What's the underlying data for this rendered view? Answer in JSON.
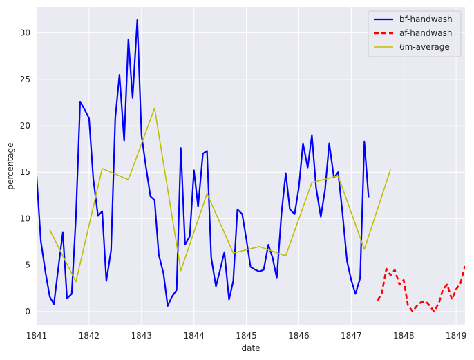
{
  "chart_data": {
    "type": "line",
    "title": "",
    "xlabel": "date",
    "ylabel": "percentage",
    "xlim": [
      1841.0,
      1849.17
    ],
    "ylim": [
      -1.5,
      32.8
    ],
    "x_ticks": [
      1841,
      1842,
      1843,
      1844,
      1845,
      1846,
      1847,
      1848,
      1849
    ],
    "x_tick_labels": [
      "1841",
      "1842",
      "1843",
      "1844",
      "1845",
      "1846",
      "1847",
      "1848",
      "1849"
    ],
    "y_ticks": [
      0,
      5,
      10,
      15,
      20,
      25,
      30
    ],
    "y_tick_labels": [
      "0",
      "5",
      "10",
      "15",
      "20",
      "25",
      "30"
    ],
    "grid": true,
    "legend_position": "top-right",
    "series": [
      {
        "name": "bf-handwash",
        "color": "#0000ff",
        "style": "solid",
        "x": [
          1841.0,
          1841.08,
          1841.17,
          1841.25,
          1841.33,
          1841.42,
          1841.5,
          1841.58,
          1841.67,
          1841.75,
          1841.83,
          1841.92,
          1842.0,
          1842.08,
          1842.17,
          1842.25,
          1842.33,
          1842.42,
          1842.5,
          1842.58,
          1842.67,
          1842.75,
          1842.83,
          1842.92,
          1843.0,
          1843.08,
          1843.17,
          1843.25,
          1843.33,
          1843.42,
          1843.5,
          1843.58,
          1843.67,
          1843.75,
          1843.83,
          1843.92,
          1844.0,
          1844.08,
          1844.17,
          1844.25,
          1844.33,
          1844.42,
          1844.5,
          1844.58,
          1844.67,
          1844.75,
          1844.83,
          1844.92,
          1845.0,
          1845.08,
          1845.17,
          1845.25,
          1845.33,
          1845.42,
          1845.5,
          1845.58,
          1845.67,
          1845.75,
          1845.83,
          1845.92,
          1846.0,
          1846.08,
          1846.17,
          1846.25,
          1846.33,
          1846.42,
          1846.5,
          1846.58,
          1846.67,
          1846.75,
          1846.83,
          1846.92,
          1847.0,
          1847.08,
          1847.17,
          1847.25,
          1847.33
        ],
        "y": [
          14.6,
          7.6,
          4.2,
          1.6,
          0.8,
          5.0,
          8.5,
          1.4,
          1.9,
          10.2,
          22.6,
          21.7,
          20.8,
          14.3,
          10.3,
          10.8,
          3.3,
          6.6,
          20.8,
          25.5,
          18.4,
          29.3,
          23.0,
          31.4,
          19.0,
          15.8,
          12.4,
          12.0,
          6.1,
          4.1,
          0.6,
          1.6,
          2.3,
          17.6,
          7.2,
          8.1,
          15.2,
          11.3,
          17.0,
          17.3,
          5.8,
          2.7,
          4.5,
          6.4,
          1.3,
          3.3,
          11.0,
          10.5,
          7.8,
          4.8,
          4.5,
          4.3,
          4.5,
          7.2,
          5.8,
          3.6,
          10.6,
          14.9,
          11.0,
          10.5,
          13.3,
          18.1,
          15.5,
          19.0,
          13.3,
          10.2,
          13.1,
          18.1,
          14.4,
          15.0,
          10.8,
          5.4,
          3.4,
          1.9,
          3.6,
          18.3,
          12.3
        ]
      },
      {
        "name": "af-handwash",
        "color": "#ff0000",
        "style": "dashed",
        "x": [
          1847.5,
          1847.58,
          1847.67,
          1847.75,
          1847.83,
          1847.92,
          1848.0,
          1848.08,
          1848.17,
          1848.25,
          1848.33,
          1848.42,
          1848.5,
          1848.58,
          1848.67,
          1848.75,
          1848.83,
          1848.92,
          1849.0,
          1849.08,
          1849.17
        ],
        "y": [
          1.2,
          1.9,
          4.6,
          3.9,
          4.5,
          2.9,
          3.4,
          0.7,
          0.0,
          0.6,
          1.0,
          1.1,
          0.6,
          0.0,
          0.9,
          2.4,
          2.9,
          1.3,
          2.4,
          3.0,
          4.9
        ]
      },
      {
        "name": "6m-average",
        "color": "#bfbf00",
        "style": "solid",
        "x": [
          1841.25,
          1841.75,
          1842.25,
          1842.75,
          1843.25,
          1843.75,
          1844.25,
          1844.75,
          1845.25,
          1845.75,
          1846.25,
          1846.75,
          1847.25,
          1847.75
        ],
        "y": [
          8.8,
          3.2,
          15.4,
          14.2,
          21.9,
          4.4,
          12.7,
          6.3,
          7.0,
          6.0,
          13.9,
          14.6,
          6.7,
          15.3
        ]
      }
    ]
  }
}
